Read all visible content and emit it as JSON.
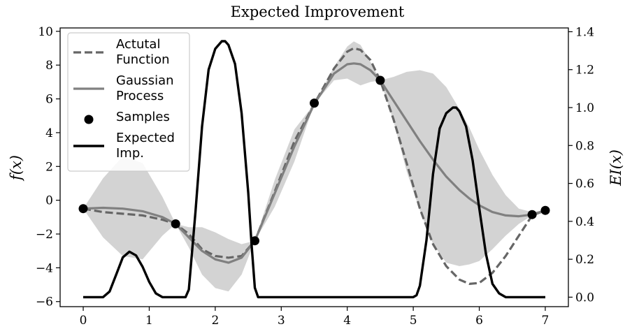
{
  "chart_data": {
    "type": "line",
    "title": "Expected Improvement",
    "ylabel": "f(x)",
    "y2label": "EI(x)",
    "xlim": [
      -0.35,
      7.35
    ],
    "ylim": [
      -6.3,
      10.2
    ],
    "y2lim": [
      -0.05,
      1.42
    ],
    "x_ticks": [
      0,
      1,
      2,
      3,
      4,
      5,
      6,
      7
    ],
    "y_ticks": [
      -6,
      -4,
      -2,
      0,
      2,
      4,
      6,
      8,
      10
    ],
    "y2_ticks": [
      0.0,
      0.2,
      0.4,
      0.6,
      0.8,
      1.0,
      1.2,
      1.4
    ],
    "legend": {
      "placement": "top-left",
      "entries": [
        {
          "key": "actual",
          "lines": [
            "Actutal",
            "Function"
          ]
        },
        {
          "key": "gp",
          "lines": [
            "Gaussian",
            "Process"
          ]
        },
        {
          "key": "samples",
          "lines": [
            "Samples"
          ]
        },
        {
          "key": "ei",
          "lines": [
            "Expected",
            "Imp."
          ]
        }
      ]
    },
    "colors": {
      "actual": "#666666",
      "gp": "#808080",
      "band": "#d3d3d3",
      "samples": "#000000",
      "ei": "#000000"
    },
    "series": [
      {
        "key": "actual",
        "axis": "left",
        "x": [
          0,
          0.3,
          0.6,
          0.9,
          1.2,
          1.4,
          1.6,
          1.8,
          2.0,
          2.2,
          2.4,
          2.6,
          2.9,
          3.2,
          3.5,
          3.8,
          4.0,
          4.1,
          4.2,
          4.35,
          4.5,
          4.7,
          4.9,
          5.1,
          5.3,
          5.5,
          5.7,
          5.85,
          6.0,
          6.2,
          6.4,
          6.6,
          6.8,
          7.0
        ],
        "y": [
          -0.5,
          -0.7,
          -0.8,
          -0.9,
          -1.15,
          -1.4,
          -2.0,
          -2.9,
          -3.3,
          -3.4,
          -3.3,
          -2.4,
          0.5,
          3.5,
          5.7,
          7.8,
          8.8,
          9.0,
          8.9,
          8.3,
          7.1,
          4.8,
          2.2,
          -0.5,
          -2.6,
          -3.9,
          -4.7,
          -4.95,
          -4.9,
          -4.3,
          -3.3,
          -2.1,
          -0.9,
          -0.6
        ]
      },
      {
        "key": "gp",
        "axis": "left",
        "x": [
          0,
          0.3,
          0.6,
          0.9,
          1.2,
          1.4,
          1.6,
          1.8,
          2.0,
          2.2,
          2.4,
          2.6,
          2.9,
          3.2,
          3.5,
          3.8,
          4.0,
          4.1,
          4.2,
          4.35,
          4.5,
          4.7,
          4.9,
          5.1,
          5.3,
          5.5,
          5.7,
          5.85,
          6.0,
          6.2,
          6.4,
          6.6,
          6.8,
          7.0
        ],
        "y": [
          -0.5,
          -0.45,
          -0.5,
          -0.65,
          -1.0,
          -1.4,
          -2.2,
          -3.0,
          -3.5,
          -3.7,
          -3.4,
          -2.4,
          0.4,
          3.2,
          5.7,
          7.5,
          8.05,
          8.1,
          8.05,
          7.7,
          7.1,
          5.9,
          4.7,
          3.5,
          2.4,
          1.4,
          0.6,
          0.1,
          -0.3,
          -0.7,
          -0.9,
          -0.95,
          -0.85,
          -0.6
        ]
      },
      {
        "key": "ei",
        "axis": "right",
        "x": [
          0,
          0.3,
          0.4,
          0.5,
          0.6,
          0.7,
          0.8,
          0.9,
          1.0,
          1.1,
          1.2,
          1.3,
          1.4,
          1.55,
          1.6,
          1.7,
          1.8,
          1.9,
          2.0,
          2.1,
          2.15,
          2.2,
          2.3,
          2.4,
          2.5,
          2.55,
          2.6,
          2.65,
          3.0,
          4.0,
          4.8,
          5.0,
          5.05,
          5.1,
          5.2,
          5.3,
          5.4,
          5.5,
          5.6,
          5.65,
          5.7,
          5.8,
          5.9,
          6.0,
          6.1,
          6.2,
          6.3,
          6.4,
          6.5,
          6.6,
          7.0
        ],
        "y": [
          0.0,
          0.0,
          0.03,
          0.12,
          0.21,
          0.24,
          0.22,
          0.16,
          0.08,
          0.02,
          0.0,
          0.0,
          0.0,
          0.0,
          0.04,
          0.45,
          0.9,
          1.2,
          1.31,
          1.35,
          1.35,
          1.33,
          1.23,
          0.97,
          0.55,
          0.28,
          0.05,
          0.0,
          0.0,
          0.0,
          0.0,
          0.0,
          0.01,
          0.06,
          0.3,
          0.65,
          0.89,
          0.97,
          1.0,
          1.0,
          0.98,
          0.9,
          0.72,
          0.47,
          0.23,
          0.07,
          0.02,
          0.0,
          0.0,
          0.0,
          0.0
        ]
      }
    ],
    "confidence_band": {
      "x": [
        0,
        0.3,
        0.6,
        0.9,
        1.2,
        1.4,
        1.6,
        1.8,
        2.0,
        2.2,
        2.4,
        2.6,
        2.9,
        3.2,
        3.5,
        3.8,
        4.0,
        4.1,
        4.2,
        4.35,
        4.5,
        4.7,
        4.9,
        5.1,
        5.3,
        5.5,
        5.7,
        5.85,
        6.0,
        6.2,
        6.4,
        6.6,
        6.8,
        7.0
      ],
      "upper": [
        -0.5,
        1.3,
        2.6,
        2.2,
        0.2,
        -1.4,
        -1.6,
        -1.6,
        -1.9,
        -2.3,
        -2.6,
        -2.4,
        1.2,
        4.2,
        5.7,
        7.9,
        9.1,
        9.4,
        9.2,
        8.2,
        7.1,
        7.3,
        7.6,
        7.7,
        7.5,
        6.7,
        5.4,
        4.3,
        3.0,
        1.5,
        0.3,
        -0.5,
        -0.7,
        -0.6
      ],
      "lower": [
        -0.5,
        -2.2,
        -3.3,
        -3.5,
        -2.1,
        -1.4,
        -2.8,
        -4.4,
        -5.2,
        -5.4,
        -4.4,
        -2.4,
        -0.4,
        2.3,
        5.7,
        7.1,
        7.2,
        7.0,
        6.8,
        7.0,
        7.1,
        4.7,
        1.7,
        -0.6,
        -2.6,
        -3.7,
        -3.9,
        -3.8,
        -3.6,
        -2.9,
        -2.1,
        -1.4,
        -0.9,
        -0.6
      ]
    },
    "samples": {
      "x": [
        0.0,
        1.4,
        2.6,
        3.5,
        4.5,
        6.8,
        7.0
      ],
      "y": [
        -0.5,
        -1.4,
        -2.4,
        5.75,
        7.1,
        -0.85,
        -0.6
      ]
    }
  }
}
